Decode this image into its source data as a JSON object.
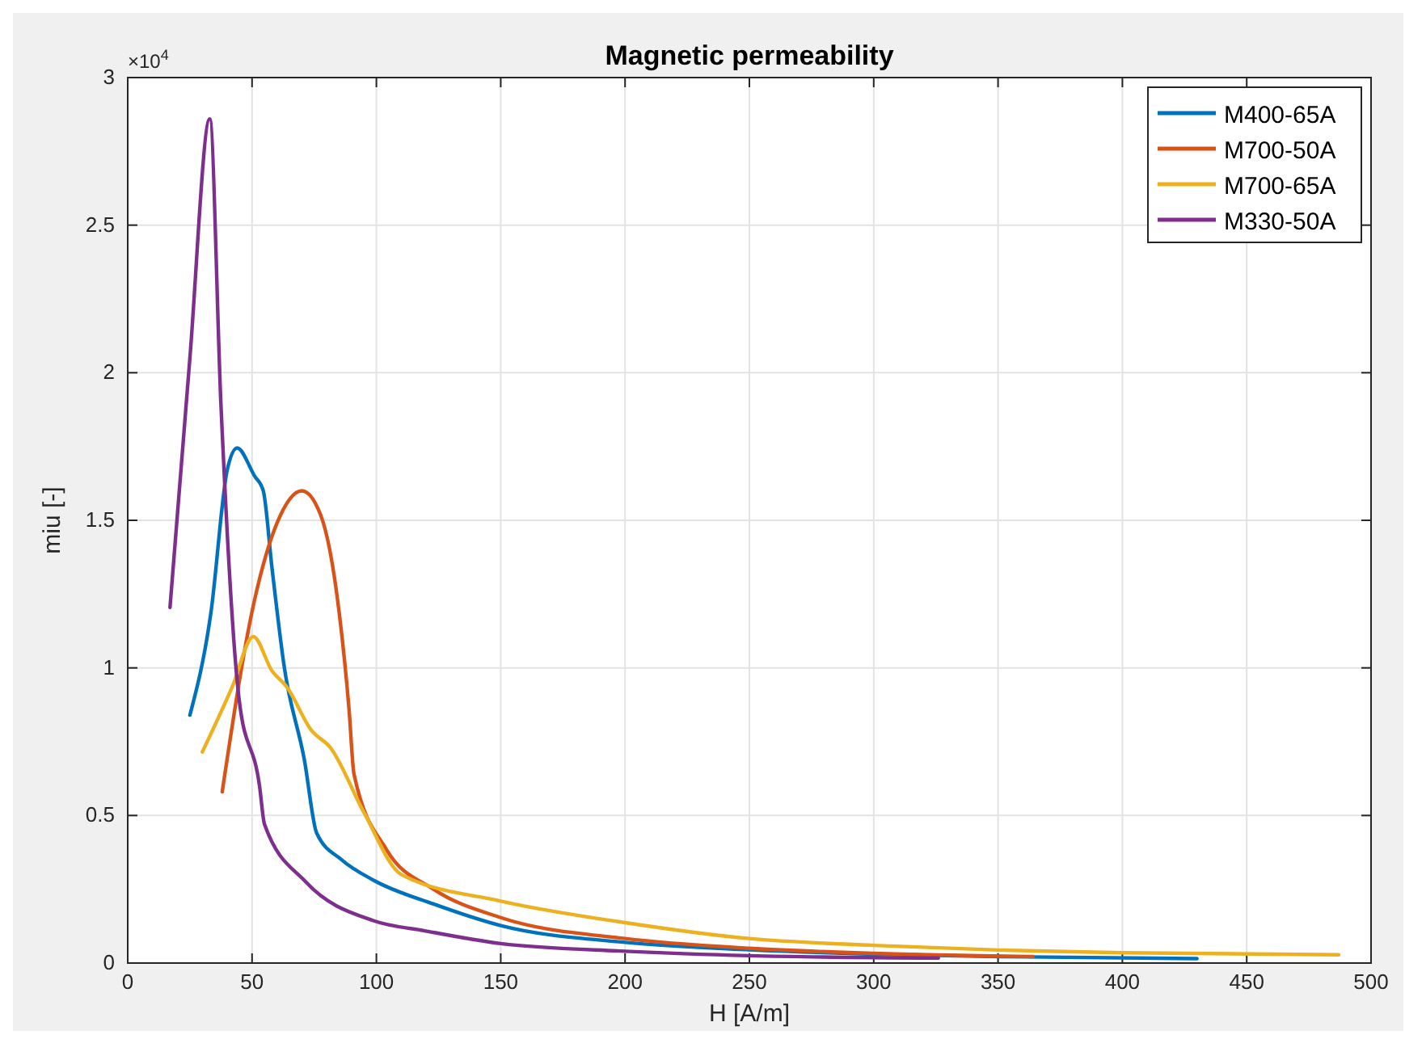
{
  "chart_data": {
    "type": "line",
    "title": "Magnetic permeability",
    "xlabel": "H [A/m]",
    "ylabel": "miu [-]",
    "annotations": [
      "×10$^{4}$"
    ],
    "xlim": [
      0,
      500
    ],
    "xticks": [
      0,
      50,
      100,
      150,
      200,
      250,
      300,
      350,
      400,
      450,
      500
    ],
    "ylim": [
      0,
      3
    ],
    "yticks": [
      0,
      0.5,
      1,
      1.5,
      2,
      2.5,
      3
    ],
    "grid": true,
    "legend": "top right",
    "line_style": "solid",
    "marker": "none",
    "series": [
      {
        "name": "M400-65A",
        "color": "#0072bd",
        "x": [
          25,
          33.5,
          40,
          44,
          51,
          54.5,
          58,
          63,
          71,
          76,
          86,
          99,
          123,
          150,
          200,
          250,
          300,
          350,
          430
        ],
        "values": [
          0.84,
          1.19,
          1.67,
          1.745,
          1.65,
          1.6,
          1.34,
          1.0,
          0.69,
          0.44,
          0.35,
          0.28,
          0.2,
          0.127,
          0.07,
          0.045,
          0.03,
          0.022,
          0.015
        ]
      },
      {
        "name": "M700-50A",
        "color": "#d95319",
        "x": [
          38,
          51,
          60,
          70,
          77.5,
          85,
          89,
          91,
          104,
          123,
          150,
          200,
          250,
          300,
          364
        ],
        "values": [
          0.58,
          1.23,
          1.49,
          1.6,
          1.52,
          1.19,
          0.86,
          0.64,
          0.385,
          0.25,
          0.154,
          0.083,
          0.05,
          0.033,
          0.022
        ]
      },
      {
        "name": "M700-65A",
        "color": "#edb120",
        "x": [
          30,
          42,
          50.5,
          58,
          64,
          74,
          81.5,
          95,
          110,
          150,
          200,
          250,
          300,
          350,
          400,
          487
        ],
        "values": [
          0.715,
          0.935,
          1.106,
          0.99,
          0.935,
          0.787,
          0.73,
          0.51,
          0.3,
          0.21,
          0.137,
          0.083,
          0.06,
          0.044,
          0.035,
          0.028
        ]
      },
      {
        "name": "M330-50A",
        "color": "#7e2f8e",
        "x": [
          17,
          25,
          33,
          37.5,
          44.7,
          53,
          55,
          71.6,
          99,
          119,
          150,
          200,
          250,
          326
        ],
        "values": [
          1.205,
          2.05,
          2.86,
          1.89,
          0.9,
          0.6,
          0.47,
          0.275,
          0.143,
          0.11,
          0.066,
          0.04,
          0.025,
          0.017
        ]
      }
    ]
  }
}
